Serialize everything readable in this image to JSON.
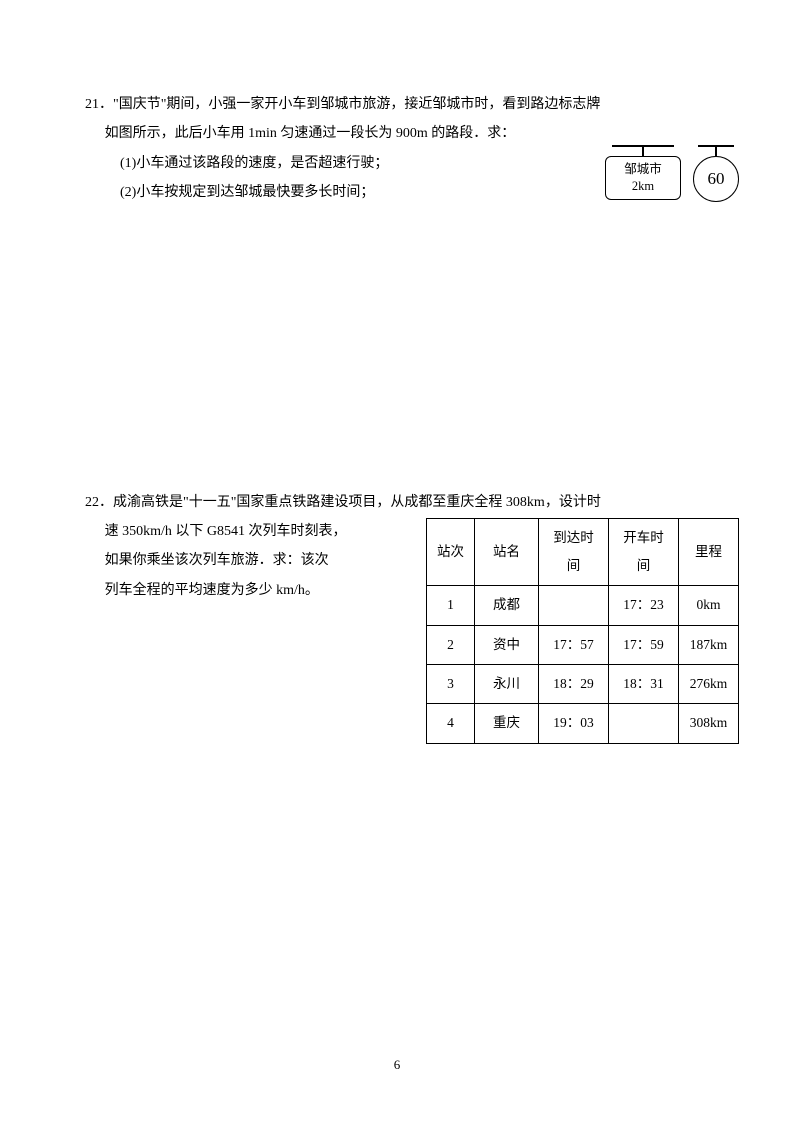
{
  "question21": {
    "number": "21．",
    "line1": "\"国庆节\"期间，小强一家开小车到邹城市旅游，接近邹城市时，看到路边标志牌",
    "line2": "如图所示，此后小车用 1min 匀速通过一段长为 900m 的路段．求：",
    "sub1": "(1)小车通过该路段的速度，是否超速行驶；",
    "sub2": "(2)小车按规定到达邹城最快要多长时间；",
    "sign": {
      "city": "邹城市",
      "distance": "2km",
      "speed_limit": "60"
    }
  },
  "question22": {
    "number": "22．",
    "line1": "成渝高铁是\"十一五\"国家重点铁路建设项目，从成都至重庆全程 308km，设计时",
    "line2": "速 350km/h 以下 G8541 次列车时刻表，",
    "line3": "如果你乘坐该次列车旅游．求：该次",
    "line4": "列车全程的平均速度为多少 km/h。",
    "table": {
      "headers": {
        "station_no": "站次",
        "station_name": "站名",
        "arrival": "到达时间",
        "departure": "开车时间",
        "mileage": "里程"
      },
      "rows": [
        {
          "no": "1",
          "name": "成都",
          "arr": "",
          "dep": "17：23",
          "dist": "0km"
        },
        {
          "no": "2",
          "name": "资中",
          "arr": "17：57",
          "dep": "17：59",
          "dist": "187km"
        },
        {
          "no": "3",
          "name": "永川",
          "arr": "18：29",
          "dep": "18：31",
          "dist": "276km"
        },
        {
          "no": "4",
          "name": "重庆",
          "arr": "19：03",
          "dep": "",
          "dist": "308km"
        }
      ]
    }
  },
  "page_number": "6"
}
